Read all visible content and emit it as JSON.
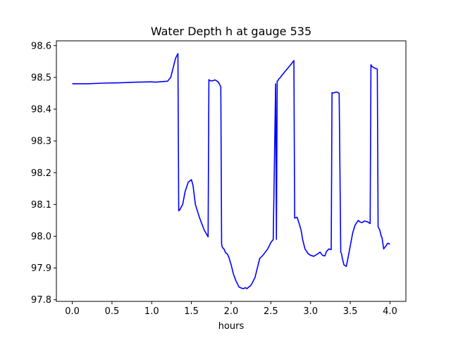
{
  "chart_data": {
    "type": "line",
    "title": "Water Depth h at gauge 535",
    "xlabel": "hours",
    "ylabel": "",
    "xlim": [
      -0.2,
      4.2
    ],
    "ylim": [
      97.795,
      98.615
    ],
    "xticks": [
      0.0,
      0.5,
      1.0,
      1.5,
      2.0,
      2.5,
      3.0,
      3.5,
      4.0
    ],
    "xtick_labels": [
      "0.0",
      "0.5",
      "1.0",
      "1.5",
      "2.0",
      "2.5",
      "3.0",
      "3.5",
      "4.0"
    ],
    "yticks": [
      97.8,
      97.9,
      98.0,
      98.1,
      98.2,
      98.3,
      98.4,
      98.5,
      98.6
    ],
    "ytick_labels": [
      "97.8",
      "97.9",
      "98.0",
      "98.1",
      "98.2",
      "98.3",
      "98.4",
      "98.5",
      "98.6"
    ],
    "grid": false,
    "legend": null,
    "series": [
      {
        "color": "#0000ff",
        "x": [
          0.0,
          0.2,
          0.4,
          0.6,
          0.8,
          1.0,
          1.05,
          1.1,
          1.2,
          1.24,
          1.27,
          1.3,
          1.33,
          1.34,
          1.35,
          1.39,
          1.42,
          1.46,
          1.5,
          1.52,
          1.55,
          1.6,
          1.66,
          1.71,
          1.72,
          1.73,
          1.76,
          1.8,
          1.84,
          1.87,
          1.88,
          1.89,
          1.9,
          1.91,
          1.93,
          1.95,
          1.97,
          2.0,
          2.03,
          2.06,
          2.1,
          2.15,
          2.18,
          2.2,
          2.22,
          2.24,
          2.26,
          2.3,
          2.33,
          2.36,
          2.4,
          2.43,
          2.46,
          2.5,
          2.53,
          2.56,
          2.57,
          2.58,
          2.59,
          2.6,
          2.62,
          2.65,
          2.7,
          2.75,
          2.79,
          2.8,
          2.81,
          2.83,
          2.85,
          2.88,
          2.9,
          2.93,
          2.97,
          3.0,
          3.04,
          3.08,
          3.12,
          3.15,
          3.18,
          3.2,
          3.23,
          3.26,
          3.27,
          3.28,
          3.3,
          3.33,
          3.36,
          3.38,
          3.39,
          3.4,
          3.42,
          3.45,
          3.47,
          3.5,
          3.53,
          3.56,
          3.6,
          3.62,
          3.65,
          3.68,
          3.72,
          3.75,
          3.76,
          3.77,
          3.8,
          3.84,
          3.85,
          3.86,
          3.87,
          3.89,
          3.9,
          3.92,
          3.95,
          3.97,
          4.0
        ],
        "y": [
          98.48,
          98.48,
          98.482,
          98.483,
          98.485,
          98.486,
          98.485,
          98.486,
          98.488,
          98.5,
          98.53,
          98.56,
          98.575,
          98.08,
          98.082,
          98.1,
          98.14,
          98.17,
          98.178,
          98.16,
          98.1,
          98.06,
          98.02,
          97.998,
          98.493,
          98.49,
          98.489,
          98.492,
          98.485,
          98.47,
          97.975,
          97.965,
          97.962,
          97.96,
          97.948,
          97.945,
          97.935,
          97.91,
          97.88,
          97.86,
          97.84,
          97.835,
          97.838,
          97.835,
          97.84,
          97.843,
          97.85,
          97.87,
          97.9,
          97.93,
          97.94,
          97.95,
          97.96,
          97.98,
          97.99,
          98.48,
          97.99,
          98.488,
          98.49,
          98.495,
          98.5,
          98.51,
          98.525,
          98.54,
          98.553,
          98.057,
          98.058,
          98.06,
          98.045,
          98.02,
          97.99,
          97.96,
          97.945,
          97.94,
          97.937,
          97.943,
          97.95,
          97.94,
          97.938,
          97.952,
          97.96,
          97.958,
          98.452,
          98.451,
          98.452,
          98.454,
          98.45,
          97.95,
          97.945,
          97.93,
          97.91,
          97.905,
          97.93,
          97.97,
          98.01,
          98.035,
          98.05,
          98.045,
          98.043,
          98.048,
          98.045,
          98.04,
          98.54,
          98.535,
          98.53,
          98.526,
          98.03,
          98.025,
          98.02,
          98.0,
          97.995,
          97.96,
          97.97,
          97.978,
          97.975
        ]
      }
    ]
  }
}
